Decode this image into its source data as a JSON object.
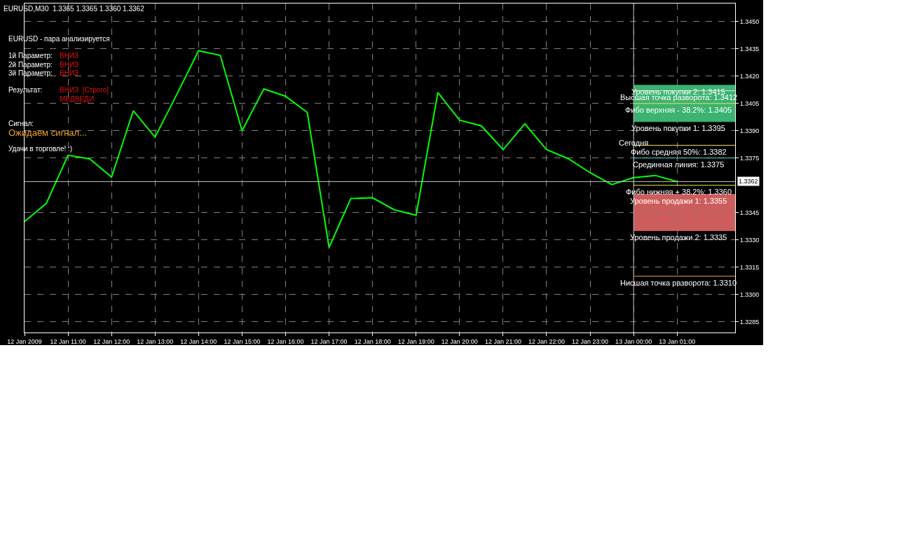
{
  "chart_data": {
    "type": "line",
    "title": "EURUSD,M30  1.3365 1.3365 1.3360 1.3362",
    "x": [
      "2009-01-12T10:00",
      "2009-01-12T10:30",
      "2009-01-12T11:00",
      "2009-01-12T11:30",
      "2009-01-12T12:00",
      "2009-01-12T12:30",
      "2009-01-12T13:00",
      "2009-01-12T13:30",
      "2009-01-12T14:00",
      "2009-01-12T14:30",
      "2009-01-12T15:00",
      "2009-01-12T15:30",
      "2009-01-12T16:00",
      "2009-01-12T16:30",
      "2009-01-12T17:00",
      "2009-01-12T17:30",
      "2009-01-12T18:00",
      "2009-01-12T18:30",
      "2009-01-12T19:00",
      "2009-01-12T19:30",
      "2009-01-12T20:00",
      "2009-01-12T20:30",
      "2009-01-12T21:00",
      "2009-01-12T21:30",
      "2009-01-12T22:00",
      "2009-01-12T22:30",
      "2009-01-12T23:00",
      "2009-01-12T23:30",
      "2009-01-13T00:00",
      "2009-01-13T00:30",
      "2009-01-13T01:00"
    ],
    "series": [
      {
        "color": "#00ff00",
        "values": [
          1.334,
          1.335,
          1.33765,
          1.33745,
          1.33645,
          1.3401,
          1.33865,
          1.341,
          1.3434,
          1.34315,
          1.339,
          1.3413,
          1.3409,
          1.34,
          1.33258,
          1.33527,
          1.33531,
          1.33465,
          1.33435,
          1.3411,
          1.33958,
          1.33927,
          1.33796,
          1.33938,
          1.33796,
          1.33746,
          1.33669,
          1.33604,
          1.33642,
          1.33654,
          1.3362
        ]
      }
    ],
    "xlim": [
      "2009-01-12T10:00",
      "2009-01-13T02:20"
    ],
    "xticks": [
      {
        "value": "2009-01-12T10:00",
        "label": "12 Jan 2009"
      },
      {
        "value": "2009-01-12T11:00",
        "label": "12 Jan 11:00"
      },
      {
        "value": "2009-01-12T12:00",
        "label": "12 Jan 12:00"
      },
      {
        "value": "2009-01-12T13:00",
        "label": "12 Jan 13:00"
      },
      {
        "value": "2009-01-12T14:00",
        "label": "12 Jan 14:00"
      },
      {
        "value": "2009-01-12T15:00",
        "label": "12 Jan 15:00"
      },
      {
        "value": "2009-01-12T16:00",
        "label": "12 Jan 16:00"
      },
      {
        "value": "2009-01-12T17:00",
        "label": "12 Jan 17:00"
      },
      {
        "value": "2009-01-12T18:00",
        "label": "12 Jan 18:00"
      },
      {
        "value": "2009-01-12T19:00",
        "label": "12 Jan 19:00"
      },
      {
        "value": "2009-01-12T20:00",
        "label": "12 Jan 20:00"
      },
      {
        "value": "2009-01-12T21:00",
        "label": "12 Jan 21:00"
      },
      {
        "value": "2009-01-12T22:00",
        "label": "12 Jan 22:00"
      },
      {
        "value": "2009-01-12T23:00",
        "label": "12 Jan 23:00"
      },
      {
        "value": "2009-01-13T00:00",
        "label": "13 Jan 00:00"
      },
      {
        "value": "2009-01-13T01:00",
        "label": "13 Jan 01:00"
      }
    ],
    "ylim": [
      1.3279,
      1.346
    ],
    "yticks": [
      {
        "value": 1.3285,
        "label": "1.3285"
      },
      {
        "value": 1.33,
        "label": "1.3300"
      },
      {
        "value": 1.3315,
        "label": "1.3315"
      },
      {
        "value": 1.333,
        "label": "1.3330"
      },
      {
        "value": 1.3345,
        "label": "1.3345"
      },
      {
        "value": 1.3375,
        "label": "1.3375"
      },
      {
        "value": 1.339,
        "label": "1.3390"
      },
      {
        "value": 1.3405,
        "label": "1.3405"
      },
      {
        "value": 1.342,
        "label": "1.3420"
      },
      {
        "value": 1.3435,
        "label": "1.3435"
      },
      {
        "value": 1.345,
        "label": "1.3450"
      }
    ],
    "grid": true,
    "marker": "none",
    "line_style": "solid",
    "bands": [
      {
        "axis": "y",
        "from": 1.3395,
        "to": 1.3415,
        "color": "#3cb371"
      },
      {
        "axis": "y",
        "from": 1.3335,
        "to": 1.3355,
        "color": "#cd5c5c"
      }
    ],
    "ref_lines": [
      {
        "axis": "x",
        "value": "2009-01-13T00:00",
        "label": "Сегодня",
        "color": "#c0c0c0"
      },
      {
        "axis": "y",
        "value": 1.3415,
        "label": "Уровень покупки 2: 1.3415",
        "color": "#3cb371"
      },
      {
        "axis": "y",
        "value": 1.3412,
        "label": "Высшая точка разворота: 1.3412",
        "color": "#e0e0e0"
      },
      {
        "axis": "y",
        "value": 1.3405,
        "label": "Фибо верхняя - 38.2%: 1.3405",
        "color": "#e8e84a"
      },
      {
        "axis": "y",
        "value": 1.3395,
        "label": "Уровень покупки 1: 1.3395",
        "color": "#3cb371"
      },
      {
        "axis": "y",
        "value": 1.3382,
        "label": "Фибо средняя 50%: 1.3382",
        "color": "#e8e84a"
      },
      {
        "axis": "y",
        "value": 1.3375,
        "label": "Срединная линия: 1.3375",
        "color": "#40e0d0"
      },
      {
        "axis": "y",
        "value": 1.336,
        "label": "Фибо нижняя + 38.2%: 1.3360",
        "color": "#e8e84a"
      },
      {
        "axis": "y",
        "value": 1.3355,
        "label": "Уровень продажи 1: 1.3355",
        "color": "#cd5c5c"
      },
      {
        "axis": "y",
        "value": 1.3335,
        "label": "Уровень продажи 2: 1.3335",
        "color": "#cd5c5c"
      },
      {
        "axis": "y",
        "value": 1.331,
        "label": "Нисшая точка разворота: 1.3310",
        "color": "#e0a030"
      },
      {
        "axis": "y",
        "value": 1.3362,
        "label": "1.3362",
        "color": "#c0c0c0"
      }
    ],
    "annotations": [
      "EURUSD - пара анализируется",
      "1й Параметр:",
      "ВНИЗ",
      "2й Параметр:",
      "ВНИЗ",
      "3й Параметр:",
      "ВНИЗ",
      "Результат:",
      "ВНИЗ  [Строго]",
      "МЕДВЕДИ",
      "Сигнал:",
      "Ожидаем сигнал...",
      "Удачи в торговле! :)"
    ]
  }
}
